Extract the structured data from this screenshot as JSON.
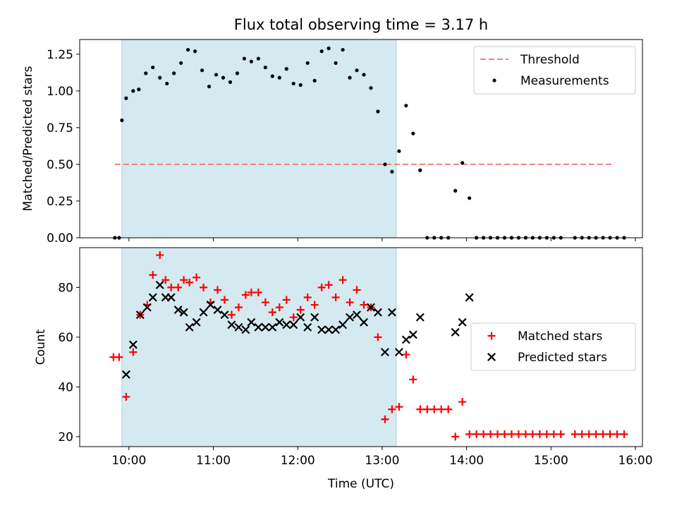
{
  "chart_data": [
    {
      "type": "scatter",
      "title": "Flux total observing time = 3.17 h",
      "xlabel": "",
      "ylabel": "Matched/Predicted stars",
      "xlim": [
        "09:25",
        "16:05"
      ],
      "ylim": [
        0,
        1.35
      ],
      "yticks": [
        0.0,
        0.25,
        0.5,
        0.75,
        1.0,
        1.25
      ],
      "ytick_labels": [
        "0.00",
        "0.25",
        "0.50",
        "0.75",
        "1.00",
        "1.25"
      ],
      "xticks": [
        "10:00",
        "11:00",
        "12:00",
        "13:00",
        "14:00",
        "15:00",
        "16:00"
      ],
      "shaded_interval": [
        "09:55",
        "13:10"
      ],
      "shade_color": "#d4eaf0",
      "legend_position": "upper right",
      "threshold": {
        "name": "Threshold",
        "value": 0.5,
        "x_range": [
          "09:50",
          "15:45"
        ],
        "color": "#f08080"
      },
      "series": [
        {
          "name": "Measurements",
          "marker": "dot",
          "color": "#000000",
          "points": [
            [
              "09:50",
              0.0
            ],
            [
              "09:53",
              0.0
            ],
            [
              "09:55",
              0.8
            ],
            [
              "09:58",
              0.95
            ],
            [
              "10:03",
              1.0
            ],
            [
              "10:07",
              1.01
            ],
            [
              "10:12",
              1.12
            ],
            [
              "10:17",
              1.16
            ],
            [
              "10:22",
              1.09
            ],
            [
              "10:27",
              1.05
            ],
            [
              "10:32",
              1.12
            ],
            [
              "10:37",
              1.19
            ],
            [
              "10:42",
              1.28
            ],
            [
              "10:47",
              1.27
            ],
            [
              "10:52",
              1.14
            ],
            [
              "10:57",
              1.03
            ],
            [
              "11:02",
              1.11
            ],
            [
              "11:07",
              1.09
            ],
            [
              "11:12",
              1.06
            ],
            [
              "11:17",
              1.12
            ],
            [
              "11:22",
              1.22
            ],
            [
              "11:27",
              1.2
            ],
            [
              "11:32",
              1.22
            ],
            [
              "11:37",
              1.16
            ],
            [
              "11:42",
              1.1
            ],
            [
              "11:47",
              1.09
            ],
            [
              "11:52",
              1.15
            ],
            [
              "11:57",
              1.05
            ],
            [
              "12:02",
              1.04
            ],
            [
              "12:07",
              1.19
            ],
            [
              "12:12",
              1.07
            ],
            [
              "12:17",
              1.27
            ],
            [
              "12:22",
              1.29
            ],
            [
              "12:27",
              1.19
            ],
            [
              "12:32",
              1.28
            ],
            [
              "12:37",
              1.09
            ],
            [
              "12:42",
              1.14
            ],
            [
              "12:47",
              1.11
            ],
            [
              "12:52",
              1.02
            ],
            [
              "12:57",
              0.86
            ],
            [
              "13:02",
              0.5
            ],
            [
              "13:07",
              0.45
            ],
            [
              "13:12",
              0.59
            ],
            [
              "13:17",
              0.9
            ],
            [
              "13:22",
              0.71
            ],
            [
              "13:27",
              0.46
            ],
            [
              "13:32",
              0.0
            ],
            [
              "13:37",
              0.0
            ],
            [
              "13:42",
              0.0
            ],
            [
              "13:47",
              0.0
            ],
            [
              "13:52",
              0.32
            ],
            [
              "13:57",
              0.51
            ],
            [
              "14:02",
              0.27
            ],
            [
              "14:07",
              0.0
            ],
            [
              "14:12",
              0.0
            ],
            [
              "14:17",
              0.0
            ],
            [
              "14:22",
              0.0
            ],
            [
              "14:27",
              0.0
            ],
            [
              "14:32",
              0.0
            ],
            [
              "14:37",
              0.0
            ],
            [
              "14:42",
              0.0
            ],
            [
              "14:47",
              0.0
            ],
            [
              "14:52",
              0.0
            ],
            [
              "14:57",
              0.0
            ],
            [
              "15:02",
              0.0
            ],
            [
              "15:07",
              0.0
            ],
            [
              "15:17",
              0.0
            ],
            [
              "15:22",
              0.0
            ],
            [
              "15:27",
              0.0
            ],
            [
              "15:32",
              0.0
            ],
            [
              "15:37",
              0.0
            ],
            [
              "15:42",
              0.0
            ],
            [
              "15:47",
              0.0
            ],
            [
              "15:52",
              0.0
            ]
          ]
        }
      ]
    },
    {
      "type": "scatter",
      "title": "",
      "xlabel": "Time (UTC)",
      "ylabel": "Count",
      "xlim": [
        "09:25",
        "16:05"
      ],
      "ylim": [
        16,
        96
      ],
      "yticks": [
        20,
        40,
        60,
        80
      ],
      "ytick_labels": [
        "20",
        "40",
        "60",
        "80"
      ],
      "xticks": [
        "10:00",
        "11:00",
        "12:00",
        "13:00",
        "14:00",
        "15:00",
        "16:00"
      ],
      "shaded_interval": [
        "09:55",
        "13:10"
      ],
      "shade_color": "#d4eaf0",
      "legend_position": "center right",
      "series": [
        {
          "name": "Matched stars",
          "marker": "plus",
          "color": "#ff0000",
          "points": [
            [
              "09:49",
              52
            ],
            [
              "09:53",
              52
            ],
            [
              "09:58",
              36
            ],
            [
              "10:03",
              54
            ],
            [
              "10:08",
              69
            ],
            [
              "10:13",
              73
            ],
            [
              "10:17",
              85
            ],
            [
              "10:22",
              93
            ],
            [
              "10:26",
              83
            ],
            [
              "10:30",
              80
            ],
            [
              "10:35",
              80
            ],
            [
              "10:39",
              83
            ],
            [
              "10:43",
              82
            ],
            [
              "10:48",
              84
            ],
            [
              "10:53",
              80
            ],
            [
              "10:58",
              74
            ],
            [
              "11:03",
              79
            ],
            [
              "11:08",
              75
            ],
            [
              "11:13",
              69
            ],
            [
              "11:18",
              72
            ],
            [
              "11:23",
              77
            ],
            [
              "11:27",
              78
            ],
            [
              "11:32",
              78
            ],
            [
              "11:37",
              74
            ],
            [
              "11:42",
              70
            ],
            [
              "11:47",
              72
            ],
            [
              "11:52",
              75
            ],
            [
              "11:57",
              68
            ],
            [
              "12:02",
              71
            ],
            [
              "12:07",
              76
            ],
            [
              "12:12",
              73
            ],
            [
              "12:17",
              80
            ],
            [
              "12:22",
              81
            ],
            [
              "12:27",
              76
            ],
            [
              "12:32",
              83
            ],
            [
              "12:37",
              74
            ],
            [
              "12:42",
              79
            ],
            [
              "12:47",
              73
            ],
            [
              "12:52",
              72
            ],
            [
              "12:57",
              60
            ],
            [
              "13:02",
              27
            ],
            [
              "13:07",
              31
            ],
            [
              "13:12",
              32
            ],
            [
              "13:17",
              53
            ],
            [
              "13:22",
              43
            ],
            [
              "13:27",
              31
            ],
            [
              "13:32",
              31
            ],
            [
              "13:37",
              31
            ],
            [
              "13:42",
              31
            ],
            [
              "13:47",
              31
            ],
            [
              "13:52",
              20
            ],
            [
              "13:57",
              34
            ],
            [
              "14:02",
              21
            ],
            [
              "14:07",
              21
            ],
            [
              "14:12",
              21
            ],
            [
              "14:17",
              21
            ],
            [
              "14:22",
              21
            ],
            [
              "14:27",
              21
            ],
            [
              "14:32",
              21
            ],
            [
              "14:37",
              21
            ],
            [
              "14:42",
              21
            ],
            [
              "14:47",
              21
            ],
            [
              "14:52",
              21
            ],
            [
              "14:57",
              21
            ],
            [
              "15:02",
              21
            ],
            [
              "15:07",
              21
            ],
            [
              "15:17",
              21
            ],
            [
              "15:22",
              21
            ],
            [
              "15:27",
              21
            ],
            [
              "15:32",
              21
            ],
            [
              "15:37",
              21
            ],
            [
              "15:42",
              21
            ],
            [
              "15:47",
              21
            ],
            [
              "15:52",
              21
            ]
          ]
        },
        {
          "name": "Predicted stars",
          "marker": "x",
          "color": "#000000",
          "points": [
            [
              "09:58",
              45
            ],
            [
              "10:03",
              57
            ],
            [
              "10:08",
              69
            ],
            [
              "10:13",
              72
            ],
            [
              "10:17",
              76
            ],
            [
              "10:22",
              81
            ],
            [
              "10:26",
              76
            ],
            [
              "10:30",
              76
            ],
            [
              "10:35",
              71
            ],
            [
              "10:39",
              70
            ],
            [
              "10:43",
              64
            ],
            [
              "10:48",
              66
            ],
            [
              "10:53",
              70
            ],
            [
              "10:58",
              73
            ],
            [
              "11:03",
              71
            ],
            [
              "11:08",
              69
            ],
            [
              "11:13",
              65
            ],
            [
              "11:18",
              64
            ],
            [
              "11:23",
              63
            ],
            [
              "11:27",
              66
            ],
            [
              "11:32",
              64
            ],
            [
              "11:37",
              64
            ],
            [
              "11:42",
              64
            ],
            [
              "11:47",
              66
            ],
            [
              "11:52",
              65
            ],
            [
              "11:57",
              65
            ],
            [
              "12:02",
              68
            ],
            [
              "12:07",
              64
            ],
            [
              "12:12",
              68
            ],
            [
              "12:17",
              63
            ],
            [
              "12:22",
              63
            ],
            [
              "12:27",
              63
            ],
            [
              "12:32",
              65
            ],
            [
              "12:37",
              68
            ],
            [
              "12:42",
              69
            ],
            [
              "12:47",
              66
            ],
            [
              "12:52",
              72
            ],
            [
              "12:57",
              70
            ],
            [
              "13:02",
              54
            ],
            [
              "13:07",
              70
            ],
            [
              "13:12",
              54
            ],
            [
              "13:17",
              59
            ],
            [
              "13:22",
              61
            ],
            [
              "13:27",
              68
            ],
            [
              "13:52",
              62
            ],
            [
              "13:57",
              66
            ],
            [
              "14:02",
              76
            ]
          ]
        }
      ]
    }
  ]
}
